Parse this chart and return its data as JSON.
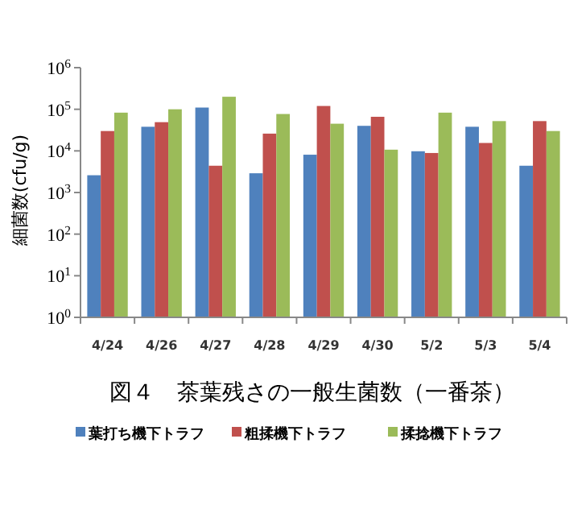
{
  "chart_data": {
    "type": "bar",
    "title": "図４　茶葉残さの一般生菌数（一番茶）",
    "ylabel": "細菌数(cfu/g)",
    "categories": [
      "4/24",
      "4/26",
      "4/27",
      "4/28",
      "4/29",
      "4/30",
      "5/2",
      "5/3",
      "5/4"
    ],
    "series": [
      {
        "name": "葉打ち機下トラフ",
        "color": "#4f81bd",
        "values": [
          2600,
          38000,
          110000,
          2900,
          8100,
          40000,
          9800,
          38000,
          4400
        ]
      },
      {
        "name": "粗揉機下トラフ",
        "color": "#c0504d",
        "values": [
          30000,
          49000,
          4400,
          26000,
          120000,
          66000,
          8900,
          15500,
          52000
        ]
      },
      {
        "name": "揉捻機下トラフ",
        "color": "#9bbb59",
        "values": [
          83000,
          100000,
          200000,
          77000,
          45000,
          10700,
          83000,
          52000,
          30000
        ]
      }
    ],
    "log": "y",
    "ylim": [
      1,
      1000000
    ],
    "yticks": [
      {
        "value": 1,
        "label": "10$^{0}$"
      },
      {
        "value": 10,
        "label": "10$^{1}$"
      },
      {
        "value": 100,
        "label": "10$^{2}$"
      },
      {
        "value": 1000,
        "label": "10$^{3}$"
      },
      {
        "value": 10000,
        "label": "10$^{4}$"
      },
      {
        "value": 100000,
        "label": "10$^{5}$"
      },
      {
        "value": 1000000,
        "label": "10$^{6}$"
      }
    ],
    "legend": "bottom"
  }
}
